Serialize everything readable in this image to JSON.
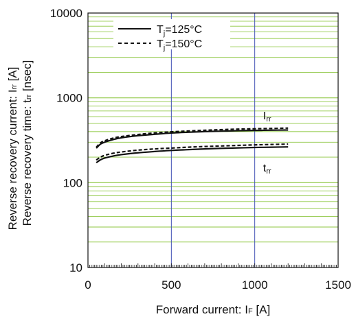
{
  "chart_data": {
    "type": "line",
    "x_axis": {
      "label": "Forward current: I",
      "label_sub": "F",
      "label_unit": " [A]",
      "range": [
        0,
        1500
      ],
      "ticks": [
        0,
        500,
        1000,
        1500
      ],
      "tick_labels": [
        "0",
        "500",
        "1000",
        "1500"
      ]
    },
    "y_axis": {
      "scale": "log",
      "range": [
        10,
        10000
      ],
      "ticks": [
        10,
        100,
        1000,
        10000
      ],
      "tick_labels": [
        "10",
        "100",
        "1000",
        "10000"
      ],
      "label_line1": {
        "text": "Reverse recovery current: I",
        "sub": "rr",
        "unit": " [A]"
      },
      "label_line2": {
        "text": "Reverse recovery time: t",
        "sub": "rr",
        "unit": " [nsec]"
      }
    },
    "grid": {
      "vertical_color": "#3f4fb3",
      "horizontal_color": "#8cc63f",
      "vertical_at": [
        500,
        1000
      ]
    },
    "legend": {
      "placement": "top-left",
      "entries": [
        {
          "text": "T",
          "sub": "j",
          "rest": "=125°C",
          "dash": "solid"
        },
        {
          "text": "T",
          "sub": "j",
          "rest": "=150°C",
          "dash": "dashed"
        }
      ]
    },
    "annotations": [
      {
        "main": "I",
        "sub": "rr",
        "at": [
          1050,
          560
        ]
      },
      {
        "main": "t",
        "sub": "rr",
        "at": [
          1050,
          135
        ]
      }
    ],
    "series": [
      {
        "curve": "Irr",
        "tj": "125",
        "dash": "solid",
        "x": [
          50,
          75,
          100,
          150,
          200,
          300,
          400,
          500,
          600,
          700,
          800,
          900,
          1000,
          1100,
          1200
        ],
        "y": [
          255,
          285,
          300,
          322,
          338,
          358,
          372,
          385,
          393,
          400,
          405,
          410,
          413,
          416,
          418
        ]
      },
      {
        "curve": "Irr",
        "tj": "150",
        "dash": "dashed",
        "x": [
          50,
          75,
          100,
          150,
          200,
          300,
          400,
          500,
          600,
          700,
          800,
          900,
          1000,
          1100,
          1200
        ],
        "y": [
          262,
          295,
          312,
          335,
          350,
          370,
          386,
          398,
          407,
          415,
          422,
          428,
          432,
          436,
          440
        ]
      },
      {
        "curve": "trr",
        "tj": "125",
        "dash": "solid",
        "x": [
          50,
          75,
          100,
          150,
          200,
          300,
          400,
          500,
          600,
          700,
          800,
          900,
          1000,
          1100,
          1200
        ],
        "y": [
          172,
          186,
          195,
          206,
          214,
          225,
          233,
          240,
          245,
          250,
          254,
          257,
          260,
          262,
          264
        ]
      },
      {
        "curve": "trr",
        "tj": "150",
        "dash": "dashed",
        "x": [
          50,
          75,
          100,
          150,
          200,
          300,
          400,
          500,
          600,
          700,
          800,
          900,
          1000,
          1100,
          1200
        ],
        "y": [
          185,
          200,
          210,
          222,
          230,
          242,
          250,
          256,
          262,
          267,
          271,
          275,
          279,
          282,
          285
        ]
      }
    ]
  }
}
